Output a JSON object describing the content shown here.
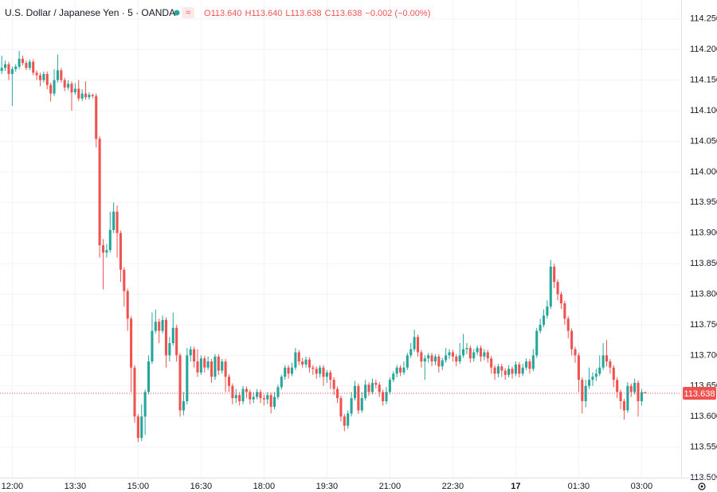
{
  "chart_data": {
    "type": "candlestick",
    "title": "U.S. Dollar / Japanese Yen · 5 · OANDA",
    "legend": [
      {
        "label": "O",
        "value": "113.640"
      },
      {
        "label": "H",
        "value": "113.640"
      },
      {
        "label": "L",
        "value": "113.638"
      },
      {
        "label": "C",
        "value": "113.638"
      }
    ],
    "legend_change": "−0.002 (−0.00%)",
    "last_value_label": "113.638",
    "up_color": "#26a69a",
    "down_color": "#ef5350",
    "grid": true,
    "xlim": [
      -0.5,
      194.3
    ],
    "xticks": [
      {
        "value": 3,
        "label": "12:00"
      },
      {
        "value": 21,
        "label": "13:30"
      },
      {
        "value": 39,
        "label": "15:00"
      },
      {
        "value": 57,
        "label": "16:30"
      },
      {
        "value": 75,
        "label": "18:00"
      },
      {
        "value": 93,
        "label": "19:30"
      },
      {
        "value": 111,
        "label": "21:00"
      },
      {
        "value": 129,
        "label": "22:30"
      },
      {
        "value": 147,
        "label": "17"
      },
      {
        "value": 165,
        "label": "01:30"
      },
      {
        "value": 183,
        "label": "03:00"
      }
    ],
    "ylim": [
      113.5,
      114.281
    ],
    "yticks": [
      {
        "value": 113.5,
        "label": "113.500"
      },
      {
        "value": 113.55,
        "label": "113.550"
      },
      {
        "value": 113.6,
        "label": "113.600"
      },
      {
        "value": 113.65,
        "label": "113.650"
      },
      {
        "value": 113.7,
        "label": "113.700"
      },
      {
        "value": 113.75,
        "label": "113.750"
      },
      {
        "value": 113.8,
        "label": "113.800"
      },
      {
        "value": 113.85,
        "label": "113.850"
      },
      {
        "value": 113.9,
        "label": "113.900"
      },
      {
        "value": 113.95,
        "label": "113.950"
      },
      {
        "value": 114.0,
        "label": "114.000"
      },
      {
        "value": 114.05,
        "label": "114.050"
      },
      {
        "value": 114.1,
        "label": "114.100"
      },
      {
        "value": 114.15,
        "label": "114.150"
      },
      {
        "value": 114.2,
        "label": "114.200"
      },
      {
        "value": 114.25,
        "label": "114.250"
      }
    ],
    "series": [
      {
        "open": [
          114.165,
          114.17,
          114.176,
          114.16,
          114.168,
          114.172,
          114.185,
          114.178,
          114.17,
          114.18,
          114.162,
          114.158,
          114.15,
          114.16,
          114.142,
          114.128,
          114.15,
          114.166,
          114.15,
          114.138,
          114.144,
          114.13,
          114.136,
          114.12,
          114.128,
          114.122,
          114.126,
          114.124,
          114.054,
          113.88,
          113.868,
          113.872,
          113.905,
          113.935,
          113.9,
          113.84,
          113.805,
          113.76,
          113.68,
          113.6,
          113.565,
          113.6,
          113.64,
          113.69,
          113.74,
          113.755,
          113.74,
          113.758,
          113.7,
          113.72,
          113.745,
          113.7,
          113.61,
          113.625,
          113.7,
          113.71,
          113.69,
          113.672,
          113.695,
          113.68,
          113.69,
          113.665,
          113.698,
          113.675,
          113.69,
          113.665,
          113.65,
          113.63,
          113.635,
          113.625,
          113.645,
          113.64,
          113.628,
          113.632,
          113.64,
          113.63,
          113.628,
          113.635,
          113.616,
          113.632,
          113.648,
          113.665,
          113.68,
          113.67,
          113.68,
          113.705,
          113.69,
          113.685,
          113.693,
          113.68,
          113.678,
          113.67,
          113.68,
          113.665,
          113.672,
          113.66,
          113.645,
          113.63,
          113.6,
          113.585,
          113.605,
          113.63,
          113.65,
          113.61,
          113.63,
          113.652,
          113.64,
          113.655,
          113.652,
          113.64,
          113.625,
          113.64,
          113.66,
          113.67,
          113.68,
          113.672,
          113.68,
          113.7,
          113.71,
          113.73,
          113.705,
          113.69,
          113.695,
          113.7,
          113.69,
          113.698,
          113.682,
          113.692,
          113.7,
          113.705,
          113.698,
          113.69,
          113.7,
          113.71,
          113.712,
          113.695,
          113.705,
          113.712,
          113.698,
          113.705,
          113.695,
          113.68,
          113.67,
          113.682,
          113.675,
          113.668,
          113.678,
          113.67,
          113.685,
          113.67,
          113.68,
          113.69,
          113.678,
          113.7,
          113.74,
          113.75,
          113.765,
          113.78,
          113.845,
          113.82,
          113.8,
          113.785,
          113.76,
          113.74,
          113.71,
          113.7,
          113.66,
          113.625,
          113.65,
          113.66,
          113.665,
          113.67,
          113.68,
          113.7,
          113.69,
          113.68,
          113.66,
          113.64,
          113.625,
          113.61,
          113.65,
          113.64,
          113.655,
          113.625,
          113.64
        ],
        "high": [
          114.19,
          114.182,
          114.18,
          114.172,
          114.176,
          114.198,
          114.19,
          114.182,
          114.184,
          114.184,
          114.166,
          114.162,
          114.164,
          114.164,
          114.146,
          114.168,
          114.192,
          114.17,
          114.154,
          114.15,
          114.148,
          114.145,
          114.15,
          114.135,
          114.148,
          114.13,
          114.128,
          114.128,
          114.058,
          113.89,
          113.882,
          113.935,
          113.95,
          113.945,
          113.904,
          113.844,
          113.809,
          113.764,
          113.684,
          113.604,
          113.62,
          113.644,
          113.7,
          113.77,
          113.775,
          113.76,
          113.765,
          113.762,
          113.73,
          113.77,
          113.75,
          113.704,
          113.64,
          113.712,
          113.715,
          113.714,
          113.71,
          113.7,
          113.699,
          113.698,
          113.694,
          113.702,
          113.702,
          113.694,
          113.694,
          113.669,
          113.654,
          113.645,
          113.64,
          113.65,
          113.649,
          113.644,
          113.64,
          113.645,
          113.644,
          113.636,
          113.64,
          113.639,
          113.64,
          113.652,
          113.668,
          113.684,
          113.684,
          113.688,
          113.712,
          113.709,
          113.696,
          113.698,
          113.697,
          113.684,
          113.682,
          113.684,
          113.684,
          113.676,
          113.676,
          113.664,
          113.649,
          113.634,
          113.604,
          113.61,
          113.64,
          113.658,
          113.654,
          113.64,
          113.66,
          113.656,
          113.662,
          113.66,
          113.656,
          113.644,
          113.648,
          113.664,
          113.674,
          113.684,
          113.684,
          113.69,
          113.704,
          113.72,
          113.742,
          113.734,
          113.709,
          113.7,
          113.704,
          113.704,
          113.702,
          113.702,
          113.696,
          113.712,
          113.71,
          113.709,
          113.702,
          113.72,
          113.735,
          113.72,
          113.716,
          113.71,
          113.716,
          113.716,
          113.71,
          113.709,
          113.699,
          113.684,
          113.686,
          113.686,
          113.679,
          113.684,
          113.682,
          113.69,
          113.689,
          113.686,
          113.695,
          113.694,
          113.71,
          113.745,
          113.76,
          113.775,
          113.79,
          113.856,
          113.85,
          113.824,
          113.804,
          113.789,
          113.764,
          113.744,
          113.714,
          113.704,
          113.664,
          113.66,
          113.68,
          113.672,
          113.678,
          113.7,
          113.72,
          113.725,
          113.694,
          113.684,
          113.664,
          113.644,
          113.629,
          113.656,
          113.654,
          113.662,
          113.659,
          113.645,
          113.64
        ],
        "low": [
          114.16,
          114.165,
          114.15,
          114.108,
          114.164,
          114.168,
          114.174,
          114.166,
          114.166,
          114.158,
          114.15,
          114.14,
          114.146,
          114.135,
          114.115,
          114.124,
          114.146,
          114.146,
          114.132,
          114.134,
          114.1,
          114.126,
          114.116,
          114.116,
          114.118,
          114.118,
          114.12,
          114.04,
          113.86,
          113.808,
          113.86,
          113.868,
          113.9,
          113.86,
          113.82,
          113.78,
          113.74,
          113.64,
          113.59,
          113.558,
          113.56,
          113.57,
          113.636,
          113.686,
          113.736,
          113.72,
          113.736,
          113.68,
          113.69,
          113.716,
          113.69,
          113.6,
          113.602,
          113.62,
          113.69,
          113.68,
          113.665,
          113.668,
          113.672,
          113.676,
          113.655,
          113.66,
          113.668,
          113.67,
          113.64,
          113.64,
          113.62,
          113.622,
          113.618,
          113.62,
          113.63,
          113.62,
          113.622,
          113.628,
          113.622,
          113.618,
          113.62,
          113.605,
          113.612,
          113.628,
          113.644,
          113.66,
          113.662,
          113.666,
          113.676,
          113.684,
          113.68,
          113.68,
          113.672,
          113.668,
          113.662,
          113.664,
          113.65,
          113.655,
          113.645,
          113.635,
          113.622,
          113.592,
          113.576,
          113.58,
          113.6,
          113.626,
          113.604,
          113.606,
          113.626,
          113.634,
          113.636,
          113.646,
          113.632,
          113.618,
          113.62,
          113.636,
          113.656,
          113.664,
          113.666,
          113.668,
          113.676,
          113.696,
          113.706,
          113.698,
          113.68,
          113.66,
          113.688,
          113.682,
          113.684,
          113.672,
          113.676,
          113.688,
          113.694,
          113.69,
          113.682,
          113.686,
          113.696,
          113.702,
          113.688,
          113.69,
          113.7,
          113.69,
          113.692,
          113.688,
          113.67,
          113.66,
          113.664,
          113.665,
          113.66,
          113.664,
          113.662,
          113.666,
          113.664,
          113.666,
          113.676,
          113.67,
          113.674,
          113.696,
          113.736,
          113.746,
          113.76,
          113.776,
          113.81,
          113.79,
          113.776,
          113.75,
          113.728,
          113.7,
          113.688,
          113.64,
          113.605,
          113.615,
          113.645,
          113.65,
          113.658,
          113.666,
          113.676,
          113.682,
          113.67,
          113.648,
          113.63,
          113.612,
          113.595,
          113.606,
          113.632,
          113.636,
          113.6,
          113.618,
          113.638
        ],
        "close": [
          114.17,
          114.176,
          114.16,
          114.168,
          114.172,
          114.185,
          114.178,
          114.17,
          114.18,
          114.162,
          114.158,
          114.15,
          114.16,
          114.142,
          114.128,
          114.15,
          114.166,
          114.15,
          114.138,
          114.144,
          114.13,
          114.136,
          114.12,
          114.128,
          114.122,
          114.126,
          114.124,
          114.054,
          113.88,
          113.868,
          113.872,
          113.905,
          113.935,
          113.9,
          113.84,
          113.805,
          113.76,
          113.68,
          113.6,
          113.565,
          113.6,
          113.64,
          113.69,
          113.74,
          113.755,
          113.74,
          113.758,
          113.7,
          113.72,
          113.745,
          113.7,
          113.61,
          113.625,
          113.7,
          113.71,
          113.69,
          113.672,
          113.695,
          113.68,
          113.69,
          113.665,
          113.698,
          113.675,
          113.69,
          113.665,
          113.65,
          113.63,
          113.635,
          113.625,
          113.645,
          113.64,
          113.628,
          113.632,
          113.64,
          113.63,
          113.628,
          113.635,
          113.616,
          113.632,
          113.648,
          113.665,
          113.68,
          113.67,
          113.68,
          113.705,
          113.69,
          113.685,
          113.693,
          113.68,
          113.678,
          113.67,
          113.68,
          113.665,
          113.672,
          113.66,
          113.645,
          113.63,
          113.6,
          113.585,
          113.605,
          113.63,
          113.65,
          113.61,
          113.63,
          113.652,
          113.64,
          113.655,
          113.652,
          113.64,
          113.625,
          113.64,
          113.66,
          113.67,
          113.68,
          113.672,
          113.68,
          113.7,
          113.71,
          113.73,
          113.705,
          113.69,
          113.695,
          113.7,
          113.69,
          113.698,
          113.682,
          113.692,
          113.7,
          113.705,
          113.698,
          113.69,
          113.7,
          113.71,
          113.712,
          113.695,
          113.705,
          113.712,
          113.698,
          113.705,
          113.695,
          113.68,
          113.67,
          113.682,
          113.675,
          113.668,
          113.678,
          113.67,
          113.685,
          113.67,
          113.68,
          113.69,
          113.678,
          113.7,
          113.74,
          113.75,
          113.765,
          113.78,
          113.845,
          113.82,
          113.8,
          113.785,
          113.76,
          113.74,
          113.71,
          113.7,
          113.66,
          113.625,
          113.65,
          113.66,
          113.665,
          113.67,
          113.68,
          113.7,
          113.69,
          113.68,
          113.66,
          113.64,
          113.625,
          113.61,
          113.65,
          113.64,
          113.655,
          113.625,
          113.64,
          113.638
        ]
      }
    ]
  }
}
